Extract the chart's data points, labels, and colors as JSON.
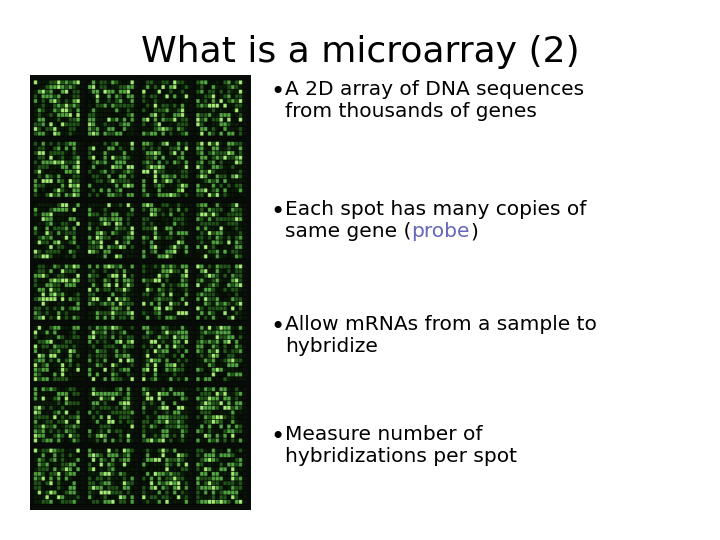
{
  "title": "What is a microarray (2)",
  "title_fontsize": 26,
  "title_color": "#000000",
  "background_color": "#ffffff",
  "bullet_points": [
    {
      "lines": [
        {
          "parts": [
            {
              "text": "A 2D array of DNA sequences",
              "color": "#000000"
            }
          ]
        },
        {
          "parts": [
            {
              "text": "from thousands of genes",
              "color": "#000000"
            }
          ]
        }
      ]
    },
    {
      "lines": [
        {
          "parts": [
            {
              "text": "Each spot has many copies of",
              "color": "#000000"
            }
          ]
        },
        {
          "parts": [
            {
              "text": "same gene (",
              "color": "#000000"
            },
            {
              "text": "probe",
              "color": "#6666bb"
            },
            {
              "text": ")",
              "color": "#000000"
            }
          ]
        }
      ]
    },
    {
      "lines": [
        {
          "parts": [
            {
              "text": "Allow mRNAs from a sample to",
              "color": "#000000"
            }
          ]
        },
        {
          "parts": [
            {
              "text": "hybridize",
              "color": "#000000"
            }
          ]
        }
      ]
    },
    {
      "lines": [
        {
          "parts": [
            {
              "text": "Measure number of",
              "color": "#000000"
            }
          ]
        },
        {
          "parts": [
            {
              "text": "hybridizations per spot",
              "color": "#000000"
            }
          ]
        }
      ]
    }
  ],
  "bullet_fontsize": 14.5,
  "image_n_col_blocks": 4,
  "image_n_row_blocks": 7,
  "image_spots_per_block": 12,
  "probe_color": "#6666bb"
}
